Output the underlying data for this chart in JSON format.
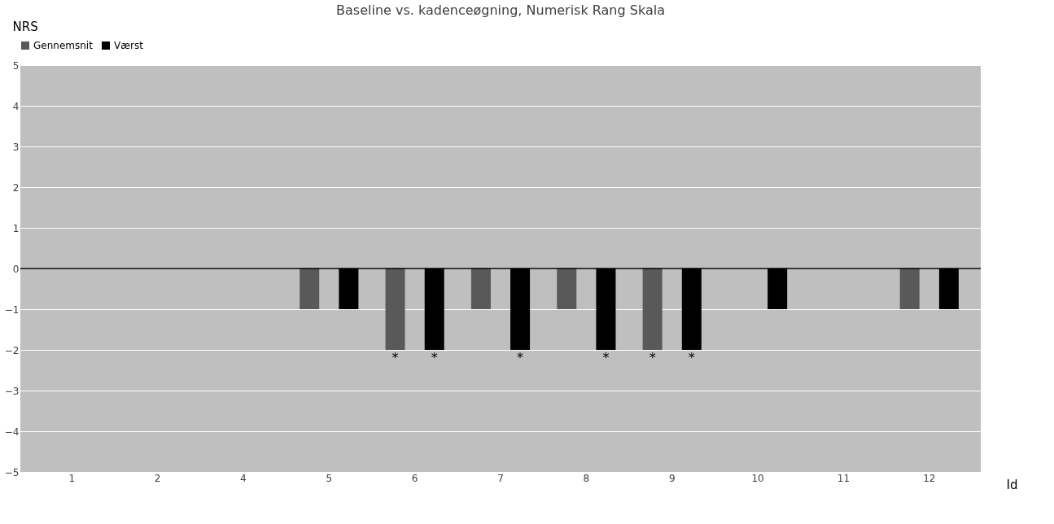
{
  "chart_data": {
    "type": "bar",
    "title": "Baseline vs. kadenceøgning, Numerisk Rang Skala",
    "xlabel": "Id",
    "ylabel": "NRS",
    "categories": [
      "1",
      "2",
      "4",
      "5",
      "6",
      "7",
      "8",
      "9",
      "10",
      "11",
      "12"
    ],
    "series": [
      {
        "name": "Gennemsnit",
        "color": "#595959",
        "values": [
          0,
          0,
          0,
          -1,
          -2,
          -1,
          -1,
          -2,
          0,
          0,
          -1
        ],
        "value_labels": [
          null,
          null,
          null,
          null,
          "*",
          null,
          null,
          "*",
          null,
          null,
          null
        ]
      },
      {
        "name": "Værst",
        "color": "#000000",
        "values": [
          0,
          0,
          0,
          -1,
          -2,
          -2,
          -2,
          -2,
          -1,
          0,
          -1
        ],
        "value_labels": [
          null,
          null,
          null,
          null,
          "*",
          "*",
          "*",
          "*",
          null,
          null,
          null
        ]
      }
    ],
    "ylim": [
      -5,
      5
    ],
    "yticks": [
      -5,
      -4,
      -3,
      -2,
      -1,
      0,
      1,
      2,
      3,
      4,
      5
    ],
    "grid": "y",
    "legend": "top",
    "ref_lines": [
      {
        "axis": "y",
        "value": 0,
        "color": "#000000"
      }
    ]
  }
}
